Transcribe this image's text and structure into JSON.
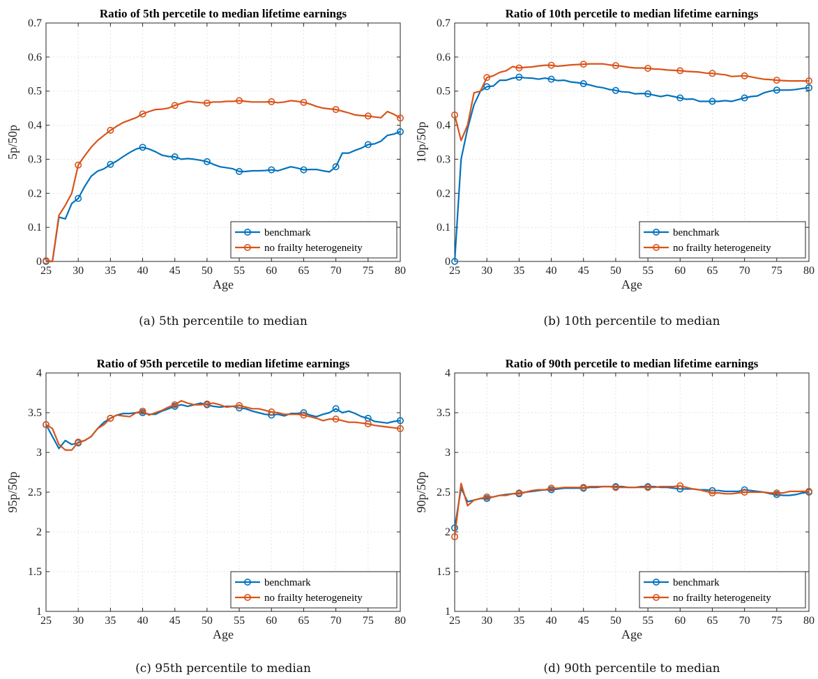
{
  "figure": {
    "colors": {
      "benchmark": "#0072BD",
      "nofrailty": "#D95319",
      "grid": "#e3e3e3",
      "axis": "#262626"
    },
    "panels_order": [
      "a",
      "b",
      "c",
      "d"
    ]
  },
  "chart_data": [
    {
      "panel_id": "a",
      "type": "line",
      "title": "Ratio of 5th percetile to median lifetime earnings",
      "xlabel": "Age",
      "ylabel": "5p/50p",
      "caption": "(a) 5th percentile to median",
      "xlim": [
        25,
        80
      ],
      "ylim": [
        0,
        0.7
      ],
      "xticks": [
        25,
        30,
        35,
        40,
        45,
        50,
        55,
        60,
        65,
        70,
        75,
        80
      ],
      "yticks": [
        0,
        0.1,
        0.2,
        0.3,
        0.4,
        0.5,
        0.6,
        0.7
      ],
      "ytick_labels": [
        "0",
        "0.1",
        "0.2",
        "0.3",
        "0.4",
        "0.5",
        "0.6",
        "0.7"
      ],
      "grid": true,
      "legend": "bottom-right",
      "markers_every": 5,
      "x": [
        25,
        26,
        27,
        28,
        29,
        30,
        31,
        32,
        33,
        34,
        35,
        36,
        37,
        38,
        39,
        40,
        41,
        42,
        43,
        44,
        45,
        46,
        47,
        48,
        49,
        50,
        51,
        52,
        53,
        54,
        55,
        56,
        57,
        58,
        59,
        60,
        61,
        62,
        63,
        64,
        65,
        66,
        67,
        68,
        69,
        70,
        71,
        72,
        73,
        74,
        75,
        76,
        77,
        78,
        79,
        80
      ],
      "series": [
        {
          "name": "benchmark",
          "values": [
            0,
            0,
            0.13,
            0.125,
            0.17,
            0.185,
            0.22,
            0.25,
            0.265,
            0.272,
            0.285,
            0.295,
            0.308,
            0.32,
            0.33,
            0.335,
            0.33,
            0.322,
            0.312,
            0.308,
            0.307,
            0.3,
            0.302,
            0.3,
            0.297,
            0.293,
            0.285,
            0.278,
            0.275,
            0.272,
            0.264,
            0.264,
            0.266,
            0.266,
            0.267,
            0.269,
            0.266,
            0.272,
            0.278,
            0.274,
            0.269,
            0.27,
            0.27,
            0.266,
            0.263,
            0.278,
            0.318,
            0.318,
            0.326,
            0.333,
            0.343,
            0.345,
            0.353,
            0.37,
            0.374,
            0.381
          ]
        },
        {
          "name": "no frailty heterogeneity",
          "values": [
            0.002,
            0,
            0.135,
            0.165,
            0.2,
            0.283,
            0.31,
            0.335,
            0.355,
            0.37,
            0.385,
            0.397,
            0.408,
            0.415,
            0.422,
            0.433,
            0.44,
            0.446,
            0.447,
            0.45,
            0.458,
            0.464,
            0.47,
            0.468,
            0.466,
            0.465,
            0.468,
            0.468,
            0.47,
            0.47,
            0.472,
            0.47,
            0.468,
            0.468,
            0.468,
            0.469,
            0.466,
            0.468,
            0.472,
            0.47,
            0.467,
            0.462,
            0.455,
            0.45,
            0.448,
            0.446,
            0.441,
            0.436,
            0.43,
            0.428,
            0.427,
            0.424,
            0.422,
            0.44,
            0.432,
            0.421
          ]
        }
      ]
    },
    {
      "panel_id": "b",
      "type": "line",
      "title": "Ratio of 10th percetile to median lifetime earnings",
      "xlabel": "Age",
      "ylabel": "10p/50p",
      "caption": "(b) 10th percentile to median",
      "xlim": [
        25,
        80
      ],
      "ylim": [
        0,
        0.7
      ],
      "xticks": [
        25,
        30,
        35,
        40,
        45,
        50,
        55,
        60,
        65,
        70,
        75,
        80
      ],
      "yticks": [
        0,
        0.1,
        0.2,
        0.3,
        0.4,
        0.5,
        0.6,
        0.7
      ],
      "ytick_labels": [
        "0",
        "0.1",
        "0.2",
        "0.3",
        "0.4",
        "0.5",
        "0.6",
        "0.7"
      ],
      "grid": true,
      "legend": "bottom-right",
      "markers_every": 5,
      "x": [
        25,
        26,
        27,
        28,
        29,
        30,
        31,
        32,
        33,
        34,
        35,
        36,
        37,
        38,
        39,
        40,
        41,
        42,
        43,
        44,
        45,
        46,
        47,
        48,
        49,
        50,
        51,
        52,
        53,
        54,
        55,
        56,
        57,
        58,
        59,
        60,
        61,
        62,
        63,
        64,
        65,
        66,
        67,
        68,
        69,
        70,
        71,
        72,
        73,
        74,
        75,
        76,
        77,
        78,
        79,
        80
      ],
      "series": [
        {
          "name": "benchmark",
          "values": [
            0,
            0.3,
            0.39,
            0.46,
            0.5,
            0.513,
            0.515,
            0.532,
            0.532,
            0.538,
            0.541,
            0.539,
            0.538,
            0.535,
            0.538,
            0.535,
            0.531,
            0.532,
            0.527,
            0.525,
            0.522,
            0.518,
            0.513,
            0.51,
            0.505,
            0.502,
            0.498,
            0.497,
            0.492,
            0.493,
            0.492,
            0.488,
            0.484,
            0.488,
            0.484,
            0.48,
            0.476,
            0.477,
            0.47,
            0.47,
            0.47,
            0.47,
            0.472,
            0.47,
            0.475,
            0.48,
            0.484,
            0.486,
            0.495,
            0.5,
            0.503,
            0.503,
            0.503,
            0.505,
            0.508,
            0.51
          ]
        },
        {
          "name": "no frailty heterogeneity",
          "values": [
            0.43,
            0.355,
            0.4,
            0.495,
            0.5,
            0.54,
            0.545,
            0.555,
            0.56,
            0.572,
            0.568,
            0.57,
            0.571,
            0.574,
            0.576,
            0.576,
            0.573,
            0.575,
            0.577,
            0.578,
            0.579,
            0.58,
            0.58,
            0.58,
            0.577,
            0.575,
            0.573,
            0.57,
            0.568,
            0.568,
            0.567,
            0.565,
            0.564,
            0.562,
            0.561,
            0.56,
            0.558,
            0.557,
            0.556,
            0.553,
            0.552,
            0.55,
            0.548,
            0.543,
            0.544,
            0.545,
            0.542,
            0.538,
            0.535,
            0.534,
            0.532,
            0.531,
            0.53,
            0.53,
            0.53,
            0.53
          ]
        }
      ]
    },
    {
      "panel_id": "c",
      "type": "line",
      "title": "Ratio of 95th percetile to median lifetime earnings",
      "xlabel": "Age",
      "ylabel": "95p/50p",
      "caption": "(c) 95th percentile to median",
      "xlim": [
        25,
        80
      ],
      "ylim": [
        1,
        4
      ],
      "xticks": [
        25,
        30,
        35,
        40,
        45,
        50,
        55,
        60,
        65,
        70,
        75,
        80
      ],
      "yticks": [
        1,
        1.5,
        2,
        2.5,
        3,
        3.5,
        4
      ],
      "ytick_labels": [
        "1",
        "1.5",
        "2",
        "2.5",
        "3",
        "3.5",
        "4"
      ],
      "grid": true,
      "legend": "bottom-right",
      "markers_every": 5,
      "x": [
        25,
        26,
        27,
        28,
        29,
        30,
        31,
        32,
        33,
        34,
        35,
        36,
        37,
        38,
        39,
        40,
        41,
        42,
        43,
        44,
        45,
        46,
        47,
        48,
        49,
        50,
        51,
        52,
        53,
        54,
        55,
        56,
        57,
        58,
        59,
        60,
        61,
        62,
        63,
        64,
        65,
        66,
        67,
        68,
        69,
        70,
        71,
        72,
        73,
        74,
        75,
        76,
        77,
        78,
        79,
        80
      ],
      "series": [
        {
          "name": "benchmark",
          "values": [
            3.35,
            3.2,
            3.05,
            3.15,
            3.1,
            3.12,
            3.15,
            3.2,
            3.3,
            3.38,
            3.43,
            3.47,
            3.49,
            3.49,
            3.5,
            3.5,
            3.48,
            3.48,
            3.52,
            3.55,
            3.58,
            3.6,
            3.58,
            3.6,
            3.62,
            3.6,
            3.58,
            3.57,
            3.58,
            3.58,
            3.56,
            3.55,
            3.52,
            3.5,
            3.48,
            3.47,
            3.48,
            3.46,
            3.49,
            3.49,
            3.5,
            3.47,
            3.45,
            3.48,
            3.5,
            3.55,
            3.5,
            3.52,
            3.49,
            3.45,
            3.43,
            3.39,
            3.38,
            3.37,
            3.39,
            3.4
          ]
        },
        {
          "name": "no frailty heterogeneity",
          "values": [
            3.35,
            3.3,
            3.1,
            3.03,
            3.03,
            3.13,
            3.15,
            3.2,
            3.3,
            3.35,
            3.43,
            3.47,
            3.46,
            3.45,
            3.5,
            3.52,
            3.47,
            3.5,
            3.53,
            3.57,
            3.6,
            3.65,
            3.62,
            3.6,
            3.6,
            3.61,
            3.62,
            3.6,
            3.57,
            3.58,
            3.59,
            3.57,
            3.55,
            3.55,
            3.53,
            3.51,
            3.5,
            3.48,
            3.48,
            3.48,
            3.47,
            3.45,
            3.43,
            3.4,
            3.42,
            3.42,
            3.4,
            3.38,
            3.38,
            3.37,
            3.36,
            3.34,
            3.33,
            3.32,
            3.31,
            3.3
          ]
        }
      ]
    },
    {
      "panel_id": "d",
      "type": "line",
      "title": "Ratio of 90th percetile to median lifetime earnings",
      "xlabel": "Age",
      "ylabel": "90p/50p",
      "caption": "(d) 90th percentile to median",
      "xlim": [
        25,
        80
      ],
      "ylim": [
        1,
        4
      ],
      "xticks": [
        25,
        30,
        35,
        40,
        45,
        50,
        55,
        60,
        65,
        70,
        75,
        80
      ],
      "yticks": [
        1,
        1.5,
        2,
        2.5,
        3,
        3.5,
        4
      ],
      "ytick_labels": [
        "1",
        "1.5",
        "2",
        "2.5",
        "3",
        "3.5",
        "4"
      ],
      "grid": true,
      "legend": "bottom-right",
      "markers_every": 5,
      "x": [
        25,
        26,
        27,
        28,
        29,
        30,
        31,
        32,
        33,
        34,
        35,
        36,
        37,
        38,
        39,
        40,
        41,
        42,
        43,
        44,
        45,
        46,
        47,
        48,
        49,
        50,
        51,
        52,
        53,
        54,
        55,
        56,
        57,
        58,
        59,
        60,
        61,
        62,
        63,
        64,
        65,
        66,
        67,
        68,
        69,
        70,
        71,
        72,
        73,
        74,
        75,
        76,
        77,
        78,
        79,
        80
      ],
      "series": [
        {
          "name": "benchmark",
          "values": [
            2.05,
            2.55,
            2.38,
            2.4,
            2.42,
            2.42,
            2.44,
            2.46,
            2.47,
            2.48,
            2.48,
            2.5,
            2.51,
            2.52,
            2.53,
            2.53,
            2.54,
            2.55,
            2.55,
            2.55,
            2.55,
            2.56,
            2.56,
            2.57,
            2.57,
            2.57,
            2.57,
            2.56,
            2.56,
            2.57,
            2.57,
            2.57,
            2.56,
            2.56,
            2.55,
            2.54,
            2.54,
            2.54,
            2.53,
            2.53,
            2.52,
            2.52,
            2.51,
            2.51,
            2.51,
            2.53,
            2.52,
            2.51,
            2.5,
            2.48,
            2.47,
            2.46,
            2.46,
            2.47,
            2.49,
            2.5
          ]
        },
        {
          "name": "no frailty heterogeneity",
          "values": [
            1.94,
            2.61,
            2.33,
            2.4,
            2.42,
            2.44,
            2.44,
            2.46,
            2.46,
            2.48,
            2.49,
            2.5,
            2.52,
            2.53,
            2.53,
            2.55,
            2.55,
            2.56,
            2.56,
            2.56,
            2.56,
            2.57,
            2.57,
            2.57,
            2.57,
            2.56,
            2.56,
            2.56,
            2.56,
            2.56,
            2.56,
            2.56,
            2.57,
            2.57,
            2.57,
            2.58,
            2.56,
            2.54,
            2.53,
            2.51,
            2.49,
            2.49,
            2.48,
            2.48,
            2.49,
            2.5,
            2.5,
            2.5,
            2.5,
            2.49,
            2.49,
            2.49,
            2.51,
            2.51,
            2.51,
            2.51
          ]
        }
      ]
    }
  ]
}
